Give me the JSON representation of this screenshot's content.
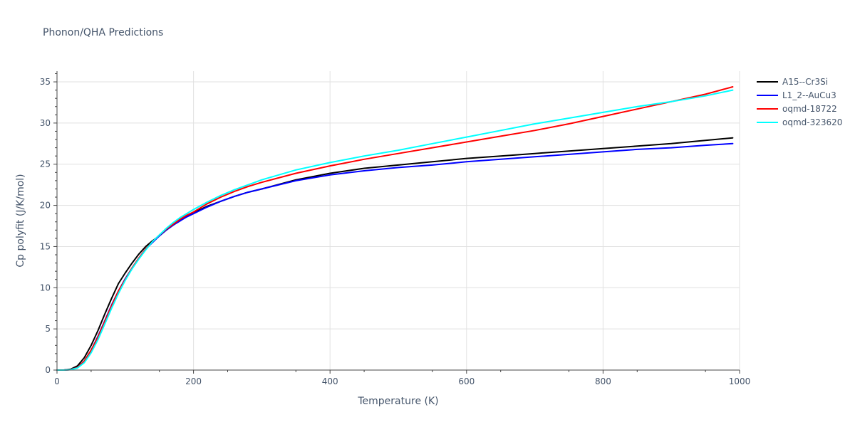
{
  "chart_data": {
    "type": "line",
    "title": "Phonon/QHA Predictions",
    "xlabel": "Temperature (K)",
    "ylabel": "Cp polyfit (J/K/mol)",
    "xlim": [
      0,
      1000
    ],
    "ylim": [
      0,
      36.3
    ],
    "x_ticks": [
      0,
      200,
      400,
      600,
      800,
      1000
    ],
    "y_ticks": [
      0,
      5,
      10,
      15,
      20,
      25,
      30,
      35
    ],
    "x_tick_labels": [
      "0",
      "200",
      "400",
      "600",
      "800",
      "1000"
    ],
    "y_tick_labels": [
      "0",
      "5",
      "10",
      "15",
      "20",
      "25",
      "30",
      "35"
    ],
    "grid": true,
    "legend_position": "top-right",
    "series": [
      {
        "name": "A15--Cr3Si",
        "color": "#000000",
        "x": [
          0,
          10,
          20,
          30,
          40,
          50,
          60,
          70,
          80,
          90,
          100,
          110,
          120,
          130,
          140,
          150,
          160,
          170,
          180,
          190,
          200,
          220,
          240,
          260,
          280,
          300,
          350,
          400,
          450,
          500,
          550,
          600,
          650,
          700,
          750,
          800,
          850,
          900,
          950,
          990
        ],
        "y": [
          0,
          0,
          0.1,
          0.5,
          1.5,
          3.0,
          4.8,
          6.8,
          8.7,
          10.5,
          11.8,
          13.0,
          14.1,
          15.0,
          15.7,
          16.3,
          17.0,
          17.6,
          18.2,
          18.7,
          19.1,
          19.9,
          20.5,
          21.1,
          21.6,
          22.0,
          23.1,
          23.9,
          24.5,
          24.9,
          25.3,
          25.7,
          26.0,
          26.3,
          26.6,
          26.9,
          27.2,
          27.5,
          27.9,
          28.2
        ]
      },
      {
        "name": "L1_2--AuCu3",
        "color": "#0000ff",
        "x": [
          0,
          10,
          20,
          30,
          40,
          50,
          60,
          70,
          80,
          90,
          100,
          110,
          120,
          130,
          140,
          150,
          160,
          170,
          180,
          190,
          200,
          220,
          240,
          260,
          280,
          300,
          350,
          400,
          450,
          500,
          550,
          600,
          650,
          700,
          750,
          800,
          850,
          900,
          950,
          990
        ],
        "y": [
          0,
          0,
          0.05,
          0.3,
          1.1,
          2.4,
          4.1,
          6.0,
          7.9,
          9.6,
          11.1,
          12.4,
          13.6,
          14.7,
          15.5,
          16.3,
          17.0,
          17.6,
          18.1,
          18.6,
          19.0,
          19.8,
          20.5,
          21.1,
          21.6,
          22.0,
          23.0,
          23.7,
          24.2,
          24.6,
          24.9,
          25.3,
          25.6,
          25.9,
          26.2,
          26.5,
          26.8,
          27.0,
          27.3,
          27.5
        ]
      },
      {
        "name": "oqmd-18722",
        "color": "#ff0000",
        "x": [
          0,
          10,
          20,
          30,
          40,
          50,
          60,
          70,
          80,
          90,
          100,
          110,
          120,
          130,
          140,
          150,
          160,
          170,
          180,
          190,
          200,
          220,
          240,
          260,
          280,
          300,
          350,
          400,
          450,
          500,
          550,
          600,
          650,
          700,
          750,
          800,
          850,
          900,
          950,
          990
        ],
        "y": [
          0,
          0,
          0.05,
          0.3,
          1.1,
          2.4,
          4.0,
          5.9,
          7.8,
          9.6,
          11.0,
          12.4,
          13.6,
          14.7,
          15.6,
          16.4,
          17.1,
          17.7,
          18.3,
          18.8,
          19.2,
          20.2,
          21.0,
          21.7,
          22.3,
          22.8,
          23.9,
          24.8,
          25.6,
          26.3,
          27.0,
          27.7,
          28.4,
          29.1,
          29.9,
          30.8,
          31.7,
          32.6,
          33.5,
          34.4
        ]
      },
      {
        "name": "oqmd-323620",
        "color": "#00ffff",
        "x": [
          0,
          10,
          20,
          30,
          40,
          50,
          60,
          70,
          80,
          90,
          100,
          110,
          120,
          130,
          140,
          150,
          160,
          170,
          180,
          190,
          200,
          220,
          240,
          260,
          280,
          300,
          350,
          400,
          450,
          500,
          550,
          600,
          650,
          700,
          750,
          800,
          850,
          900,
          950,
          990
        ],
        "y": [
          0,
          0,
          0.04,
          0.25,
          0.9,
          2.1,
          3.7,
          5.6,
          7.5,
          9.3,
          10.9,
          12.3,
          13.5,
          14.6,
          15.6,
          16.4,
          17.2,
          17.9,
          18.5,
          19.0,
          19.5,
          20.4,
          21.2,
          21.9,
          22.5,
          23.1,
          24.3,
          25.2,
          26.0,
          26.7,
          27.5,
          28.3,
          29.1,
          29.9,
          30.6,
          31.3,
          32.0,
          32.6,
          33.3,
          34.0
        ]
      }
    ]
  }
}
